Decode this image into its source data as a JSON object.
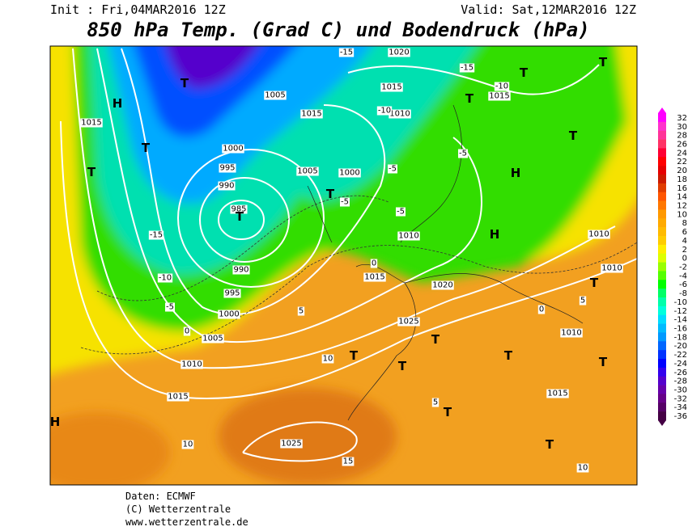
{
  "header": {
    "init": "Init : Fri,04MAR2016 12Z",
    "valid": "Valid: Sat,12MAR2016 12Z",
    "title": "850 hPa Temp. (Grad C) und Bodendruck (hPa)"
  },
  "colorbar": {
    "ticks": [
      32,
      30,
      28,
      26,
      24,
      22,
      20,
      18,
      16,
      14,
      12,
      10,
      8,
      6,
      4,
      2,
      0,
      -2,
      -4,
      -6,
      -8,
      -10,
      -12,
      -14,
      -16,
      -18,
      -20,
      -22,
      -24,
      -26,
      -28,
      -30,
      -32,
      -34,
      -36
    ],
    "colors": [
      "#ff00ff",
      "#ff33cc",
      "#ff3399",
      "#ff3366",
      "#ff0033",
      "#ff0000",
      "#e60000",
      "#cc1a00",
      "#e03c00",
      "#ff5500",
      "#ff7700",
      "#ff9900",
      "#ffaa00",
      "#ffbb00",
      "#ffcc00",
      "#ffee00",
      "#ddff00",
      "#99ff00",
      "#55ff00",
      "#00ff00",
      "#00ff66",
      "#00ffaa",
      "#00ffdd",
      "#00ddff",
      "#00bbff",
      "#0099ff",
      "#0066ff",
      "#0033ff",
      "#0000ff",
      "#3300ee",
      "#5500cc",
      "#6600aa",
      "#660088",
      "#550066",
      "#440044"
    ]
  },
  "map": {
    "isobar_labels": [
      "985",
      "990",
      "995",
      "1000",
      "1005",
      "1010",
      "1015",
      "1025",
      "1025",
      "1020",
      "1015",
      "1010",
      "1000",
      "1005",
      "1010",
      "1015",
      "1020",
      "1015",
      "1010",
      "1010",
      "1010",
      "1015",
      "1015",
      "1005",
      "995",
      "990",
      "1000",
      "1015"
    ],
    "temperature_labels": [
      "-15",
      "-10",
      "-5",
      "0",
      "5",
      "10",
      "10",
      "15",
      "-5",
      "-5",
      "-10",
      "-15",
      "-15",
      "-10",
      "-5",
      "-5",
      "0",
      "0",
      "5",
      "5",
      "10"
    ],
    "highs": [
      "H",
      "H",
      "H",
      "H"
    ],
    "lows": [
      "T",
      "T",
      "T",
      "T",
      "T",
      "T",
      "T",
      "T",
      "T",
      "T",
      "T",
      "T",
      "T",
      "T",
      "T",
      "T",
      "T"
    ]
  },
  "footer": {
    "source": "Daten: ECMWF",
    "copyright": "(C) Wetterzentrale",
    "url": "www.wetterzentrale.de"
  }
}
